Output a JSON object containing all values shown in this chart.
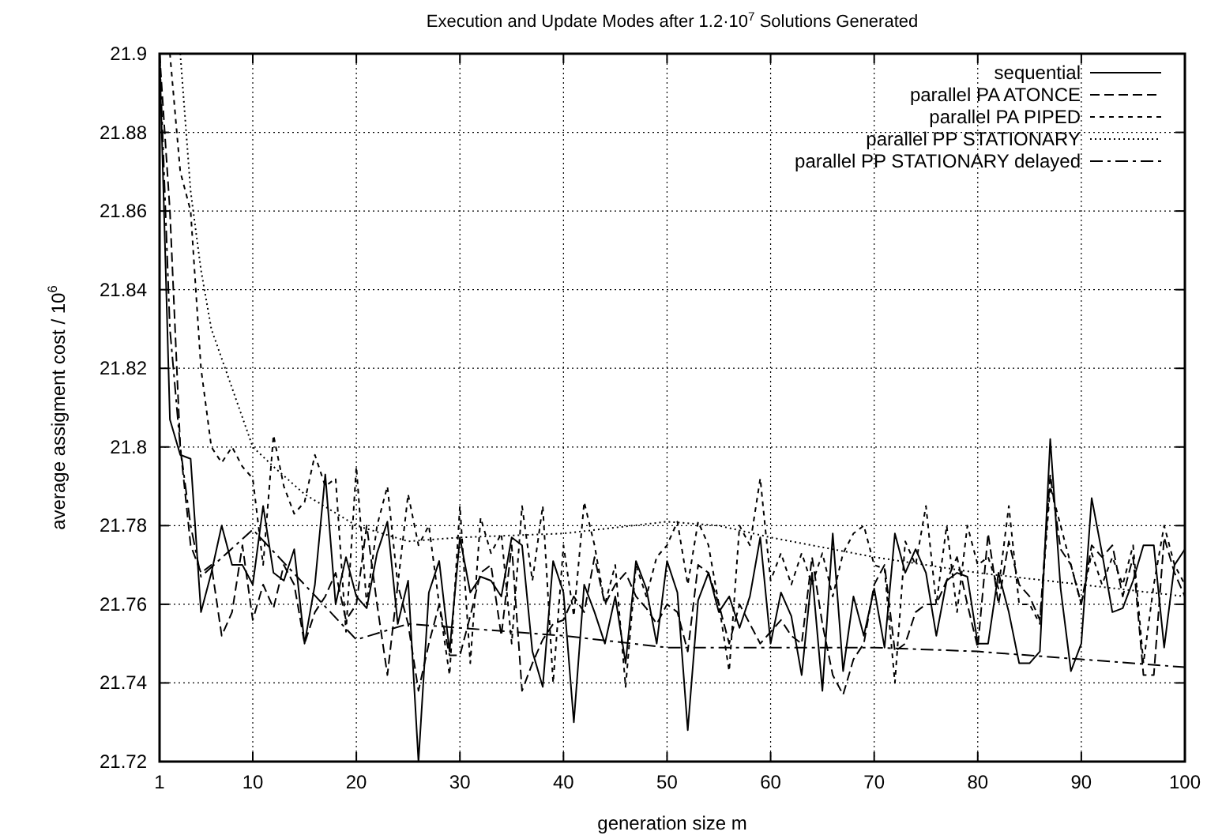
{
  "chart_data": {
    "type": "line",
    "title": "Execution and Update Modes after 1.2·10$^{7}$ Solutions Generated",
    "xlabel": "generation size m",
    "ylabel": "average assigment cost / 10$^{6}$",
    "xlim": [
      1,
      100
    ],
    "xticks": [
      1,
      10,
      20,
      30,
      40,
      50,
      60,
      70,
      80,
      90,
      100
    ],
    "ylim": [
      21.72,
      21.9
    ],
    "yticks": [
      21.72,
      21.74,
      21.76,
      21.78,
      21.8,
      21.82,
      21.84,
      21.86,
      21.88,
      21.9
    ],
    "grid": true,
    "legend": "top right",
    "series": [
      {
        "name": "sequential",
        "color": "#000000",
        "line_style": "solid",
        "x": [
          1,
          2,
          3,
          4,
          5,
          6,
          7,
          8,
          9,
          10,
          11,
          12,
          13,
          14,
          15,
          16,
          17,
          18,
          19,
          20,
          21,
          22,
          23,
          24,
          25,
          26,
          27,
          28,
          29,
          30,
          31,
          32,
          33,
          34,
          35,
          36,
          37,
          38,
          39,
          40,
          41,
          42,
          43,
          44,
          45,
          46,
          47,
          48,
          49,
          50,
          51,
          52,
          53,
          54,
          55,
          56,
          57,
          58,
          59,
          60,
          61,
          62,
          63,
          64,
          65,
          66,
          67,
          68,
          69,
          70,
          71,
          72,
          73,
          74,
          75,
          76,
          77,
          78,
          79,
          80,
          81,
          82,
          83,
          84,
          85,
          86,
          87,
          88,
          89,
          90,
          91,
          92,
          93,
          94,
          95,
          96,
          97,
          98,
          99,
          100
        ],
        "values": [
          21.9,
          21.807,
          21.798,
          21.797,
          21.758,
          21.768,
          21.78,
          21.77,
          21.77,
          21.765,
          21.785,
          21.768,
          21.766,
          21.774,
          21.75,
          21.765,
          21.793,
          21.76,
          21.772,
          21.762,
          21.759,
          21.773,
          21.781,
          21.755,
          21.766,
          21.72,
          21.763,
          21.771,
          21.748,
          21.777,
          21.763,
          21.767,
          21.766,
          21.762,
          21.777,
          21.775,
          21.748,
          21.739,
          21.771,
          21.763,
          21.73,
          21.765,
          21.758,
          21.75,
          21.762,
          21.745,
          21.771,
          21.764,
          21.75,
          21.771,
          21.763,
          21.728,
          21.761,
          21.768,
          21.758,
          21.762,
          21.754,
          21.762,
          21.777,
          21.75,
          21.763,
          21.757,
          21.742,
          21.768,
          21.738,
          21.778,
          21.743,
          21.762,
          21.752,
          21.764,
          21.749,
          21.778,
          21.768,
          21.774,
          21.768,
          21.752,
          21.766,
          21.768,
          21.767,
          21.75,
          21.75,
          21.768,
          21.758,
          21.745,
          21.745,
          21.748,
          21.802,
          21.764,
          21.743,
          21.75,
          21.787,
          21.773,
          21.758,
          21.759,
          21.766,
          21.775,
          21.775,
          21.749,
          21.77,
          21.774
        ]
      },
      {
        "name": "parallel PA ATONCE",
        "color": "#000000",
        "line_style": "dashed",
        "x": [
          1,
          2,
          3,
          4,
          5,
          6,
          7,
          8,
          9,
          10,
          11,
          12,
          13,
          14,
          15,
          16,
          17,
          18,
          19,
          20,
          21,
          22,
          23,
          24,
          25,
          26,
          27,
          28,
          29,
          30,
          31,
          32,
          33,
          34,
          35,
          36,
          37,
          38,
          39,
          40,
          41,
          42,
          43,
          44,
          45,
          46,
          47,
          48,
          49,
          50,
          51,
          52,
          53,
          54,
          55,
          56,
          57,
          58,
          59,
          60,
          61,
          62,
          63,
          64,
          65,
          66,
          67,
          68,
          69,
          70,
          71,
          72,
          73,
          74,
          75,
          76,
          77,
          78,
          79,
          80,
          81,
          82,
          83,
          84,
          85,
          86,
          87,
          88,
          89,
          90,
          91,
          92,
          93,
          94,
          95,
          96,
          97,
          98,
          99,
          100
        ],
        "values": [
          21.9,
          21.86,
          21.8,
          21.775,
          21.768,
          21.77,
          21.752,
          21.758,
          21.775,
          21.756,
          21.765,
          21.759,
          21.77,
          21.765,
          21.75,
          21.758,
          21.762,
          21.768,
          21.756,
          21.76,
          21.78,
          21.76,
          21.742,
          21.765,
          21.755,
          21.738,
          21.75,
          21.76,
          21.747,
          21.747,
          21.757,
          21.768,
          21.77,
          21.752,
          21.775,
          21.738,
          21.745,
          21.751,
          21.755,
          21.756,
          21.762,
          21.758,
          21.772,
          21.76,
          21.765,
          21.768,
          21.762,
          21.759,
          21.755,
          21.76,
          21.758,
          21.748,
          21.77,
          21.768,
          21.76,
          21.75,
          21.76,
          21.755,
          21.75,
          21.753,
          21.756,
          21.752,
          21.75,
          21.772,
          21.755,
          21.742,
          21.737,
          21.746,
          21.75,
          21.765,
          21.77,
          21.748,
          21.75,
          21.758,
          21.76,
          21.76,
          21.766,
          21.772,
          21.76,
          21.749,
          21.778,
          21.76,
          21.776,
          21.765,
          21.762,
          21.756,
          21.793,
          21.774,
          21.77,
          21.76,
          21.775,
          21.772,
          21.775,
          21.762,
          21.772,
          21.742,
          21.742,
          21.777,
          21.768,
          21.762
        ]
      },
      {
        "name": "parallel PA PIPED",
        "color": "#000000",
        "line_style": "short-dashed",
        "x": [
          1,
          2,
          3,
          4,
          5,
          6,
          7,
          8,
          9,
          10,
          11,
          12,
          13,
          14,
          15,
          16,
          17,
          18,
          19,
          20,
          21,
          22,
          23,
          24,
          25,
          26,
          27,
          28,
          29,
          30,
          31,
          32,
          33,
          34,
          35,
          36,
          37,
          38,
          39,
          40,
          41,
          42,
          43,
          44,
          45,
          46,
          47,
          48,
          49,
          50,
          51,
          52,
          53,
          54,
          55,
          56,
          57,
          58,
          59,
          60,
          61,
          62,
          63,
          64,
          65,
          66,
          67,
          68,
          69,
          70,
          71,
          72,
          73,
          74,
          75,
          76,
          77,
          78,
          79,
          80,
          81,
          82,
          83,
          84,
          85,
          86,
          87,
          88,
          89,
          90,
          91,
          92,
          93,
          94,
          95,
          96,
          97,
          98,
          99,
          100
        ],
        "values": [
          21.9,
          21.9,
          21.87,
          21.86,
          21.82,
          21.8,
          21.796,
          21.8,
          21.795,
          21.792,
          21.77,
          21.803,
          21.79,
          21.783,
          21.786,
          21.798,
          21.79,
          21.792,
          21.753,
          21.795,
          21.76,
          21.78,
          21.79,
          21.765,
          21.788,
          21.775,
          21.78,
          21.76,
          21.742,
          21.785,
          21.745,
          21.782,
          21.773,
          21.778,
          21.75,
          21.785,
          21.766,
          21.785,
          21.74,
          21.775,
          21.757,
          21.786,
          21.775,
          21.76,
          21.77,
          21.739,
          21.77,
          21.762,
          21.772,
          21.775,
          21.781,
          21.765,
          21.781,
          21.775,
          21.76,
          21.743,
          21.78,
          21.775,
          21.792,
          21.766,
          21.773,
          21.765,
          21.773,
          21.765,
          21.773,
          21.762,
          21.773,
          21.778,
          21.78,
          21.77,
          21.769,
          21.74,
          21.776,
          21.77,
          21.785,
          21.76,
          21.78,
          21.758,
          21.78,
          21.77,
          21.772,
          21.764,
          21.785,
          21.76,
          21.76,
          21.755,
          21.79,
          21.78,
          21.77,
          21.76,
          21.773,
          21.765,
          21.772,
          21.765,
          21.775,
          21.745,
          21.765,
          21.78,
          21.77,
          21.765
        ]
      },
      {
        "name": "parallel PP STATIONARY",
        "color": "#000000",
        "line_style": "dotted",
        "x": [
          3,
          4,
          5,
          6,
          8,
          10,
          12,
          15,
          20,
          25,
          30,
          40,
          50,
          55,
          60,
          70,
          80,
          90,
          100
        ],
        "values": [
          21.9,
          21.865,
          21.845,
          21.83,
          21.815,
          21.8,
          21.795,
          21.788,
          21.78,
          21.776,
          21.777,
          21.778,
          21.781,
          21.78,
          21.777,
          21.772,
          21.768,
          21.765,
          21.762
        ]
      },
      {
        "name": "parallel PP STATIONARY delayed",
        "color": "#000000",
        "line_style": "dash-dot",
        "x": [
          1,
          2,
          3,
          4,
          5,
          10,
          15,
          20,
          25,
          30,
          40,
          50,
          60,
          70,
          80,
          90,
          100
        ],
        "values": [
          21.9,
          21.83,
          21.8,
          21.78,
          21.767,
          21.779,
          21.765,
          21.751,
          21.755,
          21.754,
          21.752,
          21.749,
          21.749,
          21.749,
          21.748,
          21.746,
          21.744
        ]
      }
    ]
  }
}
